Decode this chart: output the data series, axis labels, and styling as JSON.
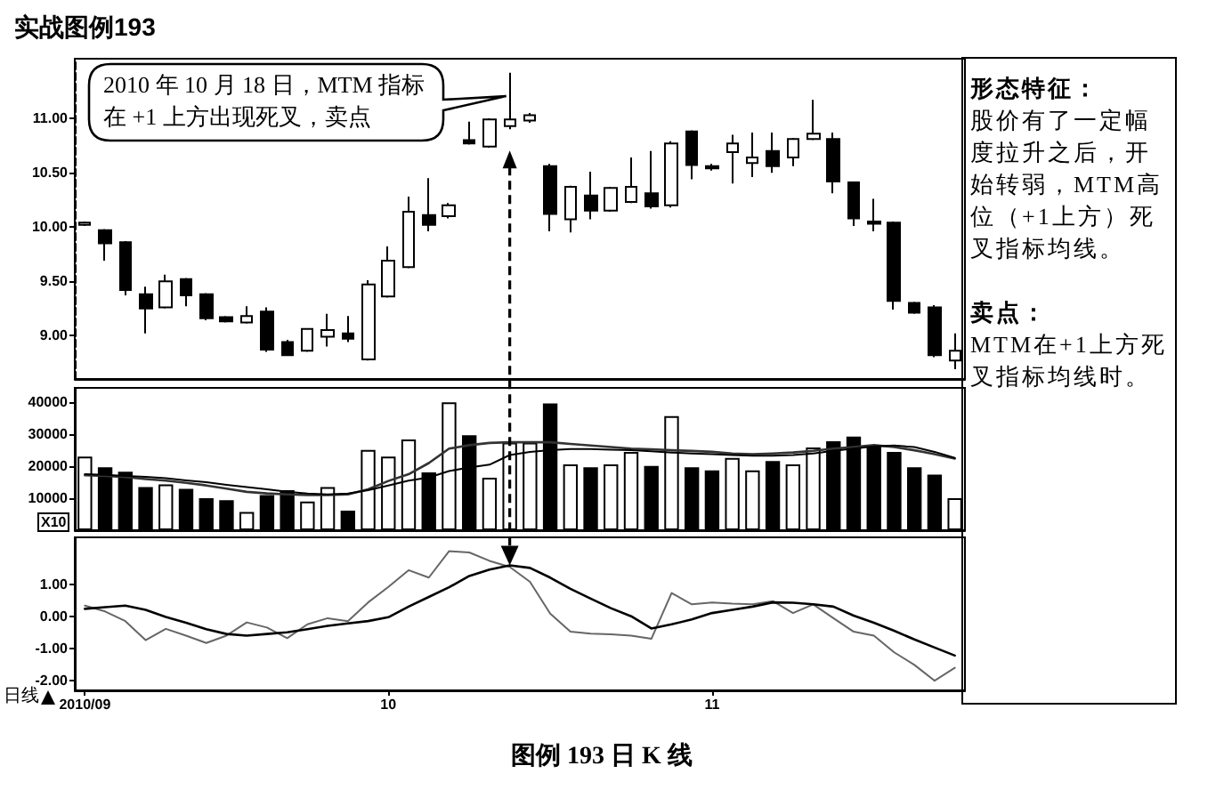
{
  "chart_data": [
    {
      "type": "candlestick",
      "title": "实战图例193",
      "categories": [
        "2010/09",
        null,
        null,
        null,
        null,
        null,
        null,
        null,
        null,
        null,
        null,
        null,
        null,
        null,
        null,
        "10",
        null,
        null,
        null,
        null,
        null,
        null,
        null,
        null,
        null,
        null,
        null,
        null,
        null,
        null,
        null,
        "11",
        null,
        null,
        null,
        null,
        null,
        null,
        null,
        null,
        null,
        null,
        null,
        null
      ],
      "ohlc": [
        [
          10.02,
          10.05,
          10.01,
          10.04
        ],
        [
          9.97,
          9.98,
          9.69,
          9.85
        ],
        [
          9.86,
          9.87,
          9.37,
          9.42
        ],
        [
          9.38,
          9.45,
          9.02,
          9.25
        ],
        [
          9.26,
          9.56,
          9.25,
          9.5
        ],
        [
          9.52,
          9.53,
          9.27,
          9.37
        ],
        [
          9.38,
          9.39,
          9.14,
          9.16
        ],
        [
          9.17,
          9.18,
          9.12,
          9.13
        ],
        [
          9.12,
          9.27,
          9.11,
          9.18
        ],
        [
          9.22,
          9.26,
          8.85,
          8.87
        ],
        [
          8.94,
          8.96,
          8.81,
          8.82
        ],
        [
          8.86,
          9.07,
          8.85,
          9.06
        ],
        [
          8.99,
          9.2,
          8.9,
          9.05
        ],
        [
          9.02,
          9.18,
          8.94,
          8.97
        ],
        [
          8.78,
          9.51,
          8.77,
          9.47
        ],
        [
          9.36,
          9.82,
          9.35,
          9.69
        ],
        [
          9.63,
          10.28,
          9.62,
          10.14
        ],
        [
          10.11,
          10.45,
          9.96,
          10.02
        ],
        [
          10.1,
          10.22,
          10.08,
          10.2
        ],
        [
          10.8,
          10.97,
          10.76,
          10.77
        ],
        [
          10.74,
          11.0,
          10.73,
          10.99
        ],
        [
          10.93,
          11.42,
          10.9,
          10.99
        ],
        [
          10.98,
          11.05,
          10.96,
          11.03
        ],
        [
          10.56,
          10.58,
          9.96,
          10.12
        ],
        [
          10.07,
          10.38,
          9.95,
          10.37
        ],
        [
          10.29,
          10.51,
          10.07,
          10.15
        ],
        [
          10.15,
          10.37,
          10.14,
          10.36
        ],
        [
          10.23,
          10.64,
          10.22,
          10.37
        ],
        [
          10.31,
          10.7,
          10.17,
          10.19
        ],
        [
          10.2,
          10.79,
          10.18,
          10.77
        ],
        [
          10.88,
          10.89,
          10.44,
          10.57
        ],
        [
          10.56,
          10.58,
          10.52,
          10.54
        ],
        [
          10.69,
          10.85,
          10.4,
          10.77
        ],
        [
          10.59,
          10.87,
          10.46,
          10.64
        ],
        [
          10.7,
          10.87,
          10.5,
          10.56
        ],
        [
          10.64,
          10.82,
          10.56,
          10.81
        ],
        [
          10.81,
          11.17,
          10.8,
          10.86
        ],
        [
          10.81,
          10.87,
          10.31,
          10.42
        ],
        [
          10.41,
          10.42,
          10.01,
          10.08
        ],
        [
          10.05,
          10.26,
          9.96,
          10.03
        ],
        [
          10.04,
          10.05,
          9.24,
          9.32
        ],
        [
          9.3,
          9.31,
          9.2,
          9.21
        ],
        [
          9.26,
          9.28,
          8.8,
          8.82
        ],
        [
          8.77,
          9.02,
          8.69,
          8.86
        ]
      ],
      "color": "#000000",
      "ylim": [
        8.6,
        11.55
      ],
      "yticks": [
        {
          "value": 9,
          "label": "9.00"
        },
        {
          "value": 9.5,
          "label": "9.50"
        },
        {
          "value": 10,
          "label": "10.00"
        },
        {
          "value": 10.5,
          "label": "10.50"
        },
        {
          "value": 11,
          "label": "11.00"
        }
      ],
      "tick_labels": "y",
      "annotations": [
        "2010 年 10 月 18 日，MTM 指标在 +1 上方出现死叉，卖点"
      ]
    },
    {
      "type": "bar",
      "categories": [
        "2010/09",
        null,
        null,
        null,
        null,
        null,
        null,
        null,
        null,
        null,
        null,
        null,
        null,
        null,
        null,
        "10",
        null,
        null,
        null,
        null,
        null,
        null,
        null,
        null,
        null,
        null,
        null,
        null,
        null,
        null,
        null,
        "11",
        null,
        null,
        null,
        null,
        null,
        null,
        null,
        null,
        null,
        null,
        null,
        null
      ],
      "ylabel": "X10",
      "ylim": [
        0,
        44500
      ],
      "yticks": [
        10000,
        20000,
        30000,
        40000
      ],
      "tick_labels": "y",
      "series": [
        {
          "type": "bar",
          "color": "#000000",
          "colors": [
            "#ffffff",
            "#000000",
            "#000000",
            "#000000",
            "#ffffff",
            "#000000",
            "#000000",
            "#000000",
            "#ffffff",
            "#000000",
            "#000000",
            "#ffffff",
            "#ffffff",
            "#000000",
            "#ffffff",
            "#ffffff",
            "#ffffff",
            "#000000",
            "#ffffff",
            "#000000",
            "#ffffff",
            "#ffffff",
            "#ffffff",
            "#000000",
            "#ffffff",
            "#000000",
            "#ffffff",
            "#ffffff",
            "#000000",
            "#ffffff",
            "#000000",
            "#000000",
            "#ffffff",
            "#ffffff",
            "#000000",
            "#ffffff",
            "#ffffff",
            "#000000",
            "#000000",
            "#000000",
            "#000000",
            "#000000",
            "#000000",
            "#ffffff"
          ],
          "values": [
            23000,
            19700,
            18300,
            13500,
            14300,
            12900,
            10000,
            9400,
            5700,
            11000,
            12500,
            9000,
            13500,
            6100,
            25100,
            23000,
            28400,
            18100,
            40000,
            29700,
            16400,
            27400,
            27400,
            39600,
            20600,
            19700,
            20600,
            24500,
            20100,
            35700,
            19700,
            18700,
            22600,
            18700,
            21600,
            20600,
            25900,
            27800,
            29300,
            26400,
            24500,
            19700,
            17400,
            10000
          ]
        },
        {
          "type": "line",
          "color": "#333333",
          "values": [
            17200,
            17000,
            16600,
            16000,
            15500,
            14800,
            14000,
            13000,
            12000,
            11500,
            11200,
            11000,
            11000,
            11200,
            12800,
            15400,
            17500,
            21000,
            25500,
            26600,
            27300,
            27500,
            27500,
            27500,
            27000,
            26500,
            26000,
            25500,
            25300,
            25000,
            24800,
            24500,
            24000,
            23800,
            24000,
            24300,
            24800,
            25500,
            26000,
            26600,
            26000,
            25000,
            23800,
            22400
          ]
        },
        {
          "type": "line",
          "color": "#000000",
          "values": [
            17500,
            17300,
            17000,
            16700,
            16300,
            15600,
            15000,
            14200,
            13500,
            12800,
            12000,
            11500,
            11200,
            11500,
            12500,
            14000,
            15500,
            16500,
            18500,
            19600,
            20500,
            23500,
            24500,
            25000,
            25400,
            25400,
            25200,
            25000,
            24700,
            24300,
            24000,
            23800,
            23500,
            23300,
            23300,
            23500,
            24000,
            24800,
            25500,
            26200,
            26500,
            26000,
            24500,
            22600
          ]
        }
      ]
    },
    {
      "type": "line",
      "categories": [
        "2010/09",
        null,
        null,
        null,
        null,
        null,
        null,
        null,
        null,
        null,
        null,
        null,
        null,
        null,
        null,
        "10",
        null,
        null,
        null,
        null,
        null,
        null,
        null,
        null,
        null,
        null,
        null,
        null,
        null,
        null,
        null,
        "11",
        null,
        null,
        null,
        null,
        null,
        null,
        null,
        null,
        null,
        null,
        null,
        null
      ],
      "ylim": [
        -2.3,
        2.45
      ],
      "yticks": [
        {
          "value": -2,
          "label": "-2.00"
        },
        {
          "value": -1,
          "label": "-1.00"
        },
        {
          "value": 0,
          "label": "0.00"
        },
        {
          "value": 1,
          "label": "1.00"
        }
      ],
      "series": [
        {
          "color": "#666666",
          "values": [
            0.33,
            0.15,
            -0.15,
            -0.74,
            -0.39,
            -0.6,
            -0.83,
            -0.6,
            -0.19,
            -0.35,
            -0.68,
            -0.25,
            -0.06,
            -0.15,
            0.43,
            0.91,
            1.43,
            1.2,
            2.02,
            1.98,
            1.72,
            1.53,
            1.07,
            0.08,
            -0.48,
            -0.54,
            -0.56,
            -0.6,
            -0.7,
            0.72,
            0.37,
            0.43,
            0.39,
            0.37,
            0.47,
            0.1,
            0.37,
            -0.06,
            -0.48,
            -0.6,
            -1.12,
            -1.51,
            -2.0,
            -1.6
          ]
        },
        {
          "color": "#000000",
          "values": [
            0.23,
            0.28,
            0.33,
            0.2,
            -0.02,
            -0.2,
            -0.4,
            -0.55,
            -0.6,
            -0.55,
            -0.5,
            -0.4,
            -0.3,
            -0.22,
            -0.15,
            -0.03,
            0.3,
            0.6,
            0.9,
            1.25,
            1.45,
            1.58,
            1.5,
            1.2,
            0.85,
            0.55,
            0.25,
            0.0,
            -0.38,
            -0.25,
            -0.1,
            0.1,
            0.2,
            0.3,
            0.43,
            0.42,
            0.37,
            0.3,
            0.02,
            -0.2,
            -0.45,
            -0.72,
            -0.97,
            -1.22
          ]
        }
      ],
      "annotations": [
        "日线",
        "图例 193 日 K 线"
      ]
    },
    {
      "type": "other",
      "annotations": [
        "形态特征：",
        "股价有了一定幅度拉升之后，开始转弱，MTM高位（+1上方）死叉指标均线。",
        "卖点：",
        "MTM在+1上方死叉指标均线时。"
      ]
    }
  ]
}
